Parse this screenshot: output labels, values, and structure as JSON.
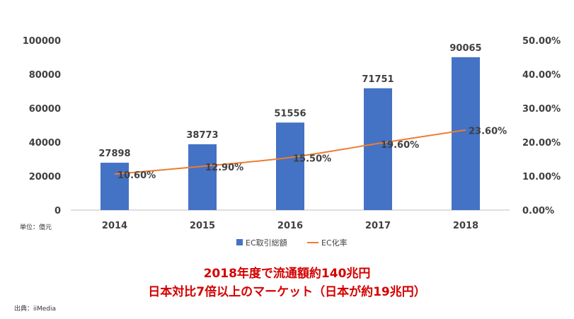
{
  "chart_data": {
    "type": "bar",
    "categories": [
      "2014",
      "2015",
      "2016",
      "2017",
      "2018"
    ],
    "series": [
      {
        "name": "EC取引総額",
        "type": "bar",
        "axis": "left",
        "values": [
          27898,
          38773,
          51556,
          71751,
          90065
        ],
        "labels": [
          "27898",
          "38773",
          "51556",
          "71751",
          "90065"
        ]
      },
      {
        "name": "EC化率",
        "type": "line",
        "axis": "right",
        "values": [
          10.6,
          12.9,
          15.5,
          19.6,
          23.6
        ],
        "labels": [
          "10.60%",
          "12.90%",
          "15.50%",
          "19.60%",
          "23.60%"
        ]
      }
    ],
    "ylim": [
      0,
      100000
    ],
    "y2lim": [
      0,
      50
    ],
    "yticks": [
      "0",
      "20000",
      "40000",
      "60000",
      "80000",
      "100000"
    ],
    "y2ticks": [
      "0.00%",
      "10.00%",
      "20.00%",
      "30.00%",
      "40.00%",
      "50.00%"
    ],
    "grid": false,
    "legend": "bottom",
    "colors": {
      "bar": "#4472c4",
      "line": "#ed7d31",
      "text": "#404040",
      "axis": "#bfbfbf"
    }
  },
  "unit_label": "単位：億元",
  "headline": {
    "line1": "2018年度で流通額約140兆円",
    "line2": "日本対比7倍以上のマーケット（日本が約19兆円）"
  },
  "source": "出典：iiMedia"
}
